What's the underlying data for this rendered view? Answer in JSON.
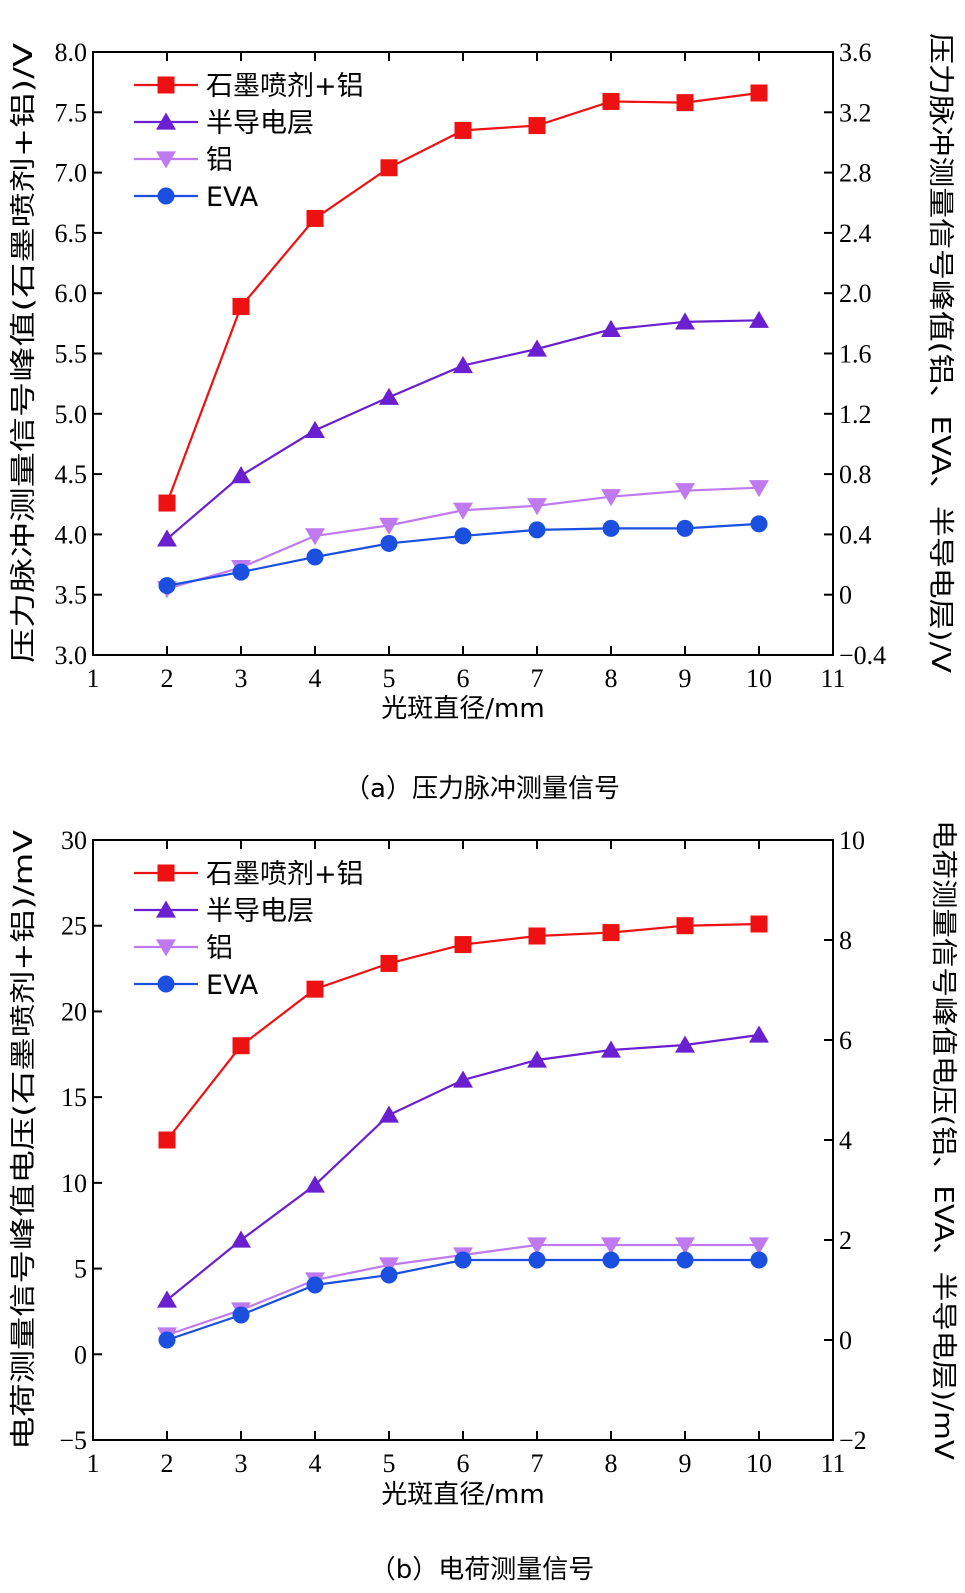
{
  "chart_data": [
    {
      "type": "line",
      "caption": "（a）压力脉冲测量信号",
      "xlabel": "光斑直径/mm",
      "ylabel_left": "压力脉冲测量信号峰值(石墨喷剂+铝)/V",
      "ylabel_right": "压力脉冲测量信号峰值(铝、EVA、半导电层)/V",
      "xlim": [
        1,
        11
      ],
      "xticks": [
        "1",
        "2",
        "3",
        "4",
        "5",
        "6",
        "7",
        "8",
        "9",
        "10",
        "11"
      ],
      "ylim_left": [
        3.0,
        8.0
      ],
      "yticks_left": [
        "3.0",
        "3.5",
        "4.0",
        "4.5",
        "5.0",
        "5.5",
        "6.0",
        "6.5",
        "7.0",
        "7.5",
        "8.0"
      ],
      "ylim_right": [
        -0.4,
        3.6
      ],
      "yticks_right": [
        "−0.4",
        "0",
        "0.4",
        "0.8",
        "1.2",
        "1.6",
        "2.0",
        "2.4",
        "2.8",
        "3.2",
        "3.6"
      ],
      "legend_position": "top-left",
      "x": [
        2,
        3,
        4,
        5,
        6,
        7,
        8,
        9,
        10
      ],
      "series": [
        {
          "name": "石墨喷剂+铝",
          "axis": "left",
          "color": "#ee1111",
          "marker": "square",
          "values": [
            4.26,
            5.89,
            6.62,
            7.04,
            7.35,
            7.39,
            7.59,
            7.58,
            7.66
          ]
        },
        {
          "name": "半导电层",
          "axis": "right",
          "color": "#6a1fd0",
          "marker": "triangle-up",
          "values": [
            0.37,
            0.79,
            1.09,
            1.31,
            1.52,
            1.63,
            1.76,
            1.81,
            1.82
          ]
        },
        {
          "name": "铝",
          "axis": "right",
          "color": "#c07af0",
          "marker": "triangle-down",
          "values": [
            0.04,
            0.18,
            0.39,
            0.46,
            0.56,
            0.59,
            0.65,
            0.69,
            0.71
          ]
        },
        {
          "name": "EVA",
          "axis": "right",
          "color": "#1a4fe0",
          "marker": "circle",
          "values": [
            0.06,
            0.15,
            0.25,
            0.34,
            0.39,
            0.43,
            0.44,
            0.44,
            0.47
          ]
        }
      ]
    },
    {
      "type": "line",
      "caption": "（b）电荷测量信号",
      "xlabel": "光斑直径/mm",
      "ylabel_left": "电荷测量信号峰值电压(石墨喷剂+铝)/mV",
      "ylabel_right": "电荷测量信号峰值电压(铝、EVA、半导电层)/mV",
      "xlim": [
        1,
        11
      ],
      "xticks": [
        "1",
        "2",
        "3",
        "4",
        "5",
        "6",
        "7",
        "8",
        "9",
        "10",
        "11"
      ],
      "ylim_left": [
        -5,
        30
      ],
      "yticks_left": [
        "−5",
        "0",
        "5",
        "10",
        "15",
        "20",
        "25",
        "30"
      ],
      "ylim_right": [
        -2,
        10
      ],
      "yticks_right": [
        "−2",
        "0",
        "2",
        "4",
        "6",
        "8",
        "10"
      ],
      "legend_position": "top-left",
      "x": [
        2,
        3,
        4,
        5,
        6,
        7,
        8,
        9,
        10
      ],
      "series": [
        {
          "name": "石墨喷剂+铝",
          "axis": "left",
          "color": "#ee1111",
          "marker": "square",
          "values": [
            12.5,
            18.0,
            21.3,
            22.8,
            23.9,
            24.4,
            24.6,
            25.0,
            25.1
          ]
        },
        {
          "name": "半导电层",
          "axis": "right",
          "color": "#6a1fd0",
          "marker": "triangle-up",
          "values": [
            0.8,
            2.0,
            3.1,
            4.5,
            5.2,
            5.6,
            5.8,
            5.9,
            6.1
          ]
        },
        {
          "name": "铝",
          "axis": "right",
          "color": "#c07af0",
          "marker": "triangle-down",
          "values": [
            0.1,
            0.6,
            1.2,
            1.5,
            1.7,
            1.9,
            1.9,
            1.9,
            1.9
          ]
        },
        {
          "name": "EVA",
          "axis": "right",
          "color": "#1a4fe0",
          "marker": "circle",
          "values": [
            0.0,
            0.5,
            1.1,
            1.3,
            1.6,
            1.6,
            1.6,
            1.6,
            1.6
          ]
        }
      ]
    }
  ]
}
